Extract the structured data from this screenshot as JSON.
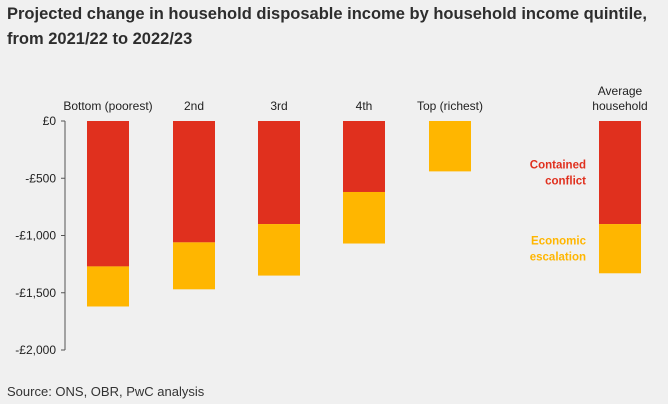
{
  "chart_data": {
    "type": "bar",
    "stacked": true,
    "title": "Projected change in household disposable income by household income quintile, from 2021/22 to 2022/23",
    "source": "Source: ONS, OBR, PwC analysis",
    "categories": [
      "Bottom (poorest)",
      "2nd",
      "3rd",
      "4th",
      "Top (richest)",
      "Average household"
    ],
    "category_label_lines": [
      [
        "Bottom (poorest)"
      ],
      [
        "2nd"
      ],
      [
        "3rd"
      ],
      [
        "4th"
      ],
      [
        "Top (richest)"
      ],
      [
        "Average",
        "household"
      ]
    ],
    "series": [
      {
        "name": "Contained conflict",
        "label_lines": [
          "Contained",
          "conflict"
        ],
        "color": "#e0301e",
        "values": [
          -1270,
          -1060,
          -900,
          -620,
          0,
          -900
        ]
      },
      {
        "name": "Economic escalation",
        "label_lines": [
          "Economic",
          "escalation"
        ],
        "color": "#ffb600",
        "values": [
          -350,
          -410,
          -450,
          -450,
          -440,
          -430
        ]
      }
    ],
    "ylim": [
      -2000,
      0
    ],
    "yticks": [
      0,
      -500,
      -1000,
      -1500,
      -2000
    ],
    "ytick_labels": [
      "£0",
      "-£500",
      "-£1,000",
      "-£1,500",
      "-£2,000"
    ],
    "xlabel": "",
    "ylabel": "",
    "legend": "inline-right",
    "grid": false
  }
}
